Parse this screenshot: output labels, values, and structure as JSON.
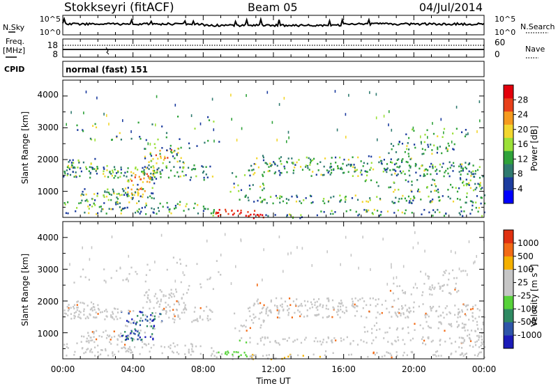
{
  "header": {
    "title": "Stokkseyri (fitACF)",
    "beam": "Beam 05",
    "date": "04/Jul/2014"
  },
  "top_panels": {
    "nsky_label": "N.Sky",
    "nsky_ticks": [
      "10^5",
      "10^0"
    ],
    "nsearch_label": "N.Search",
    "nsearch_ticks": [
      "10^5",
      "10^0"
    ],
    "freq_label_1": "Freq.",
    "freq_label_2": "[MHz]",
    "freq_ticks": [
      "18",
      "8"
    ],
    "nave_label": "Nave",
    "nave_ticks": [
      "60",
      "0"
    ],
    "cpid_label": "CPID",
    "cpid_text": "normal (fast) 151"
  },
  "time_axis": {
    "label": "Time UT",
    "ticks": [
      "00:00",
      "04:00",
      "08:00",
      "12:00",
      "16:00",
      "20:00",
      "00:00"
    ]
  },
  "chart_data": [
    {
      "type": "heatmap",
      "name": "power",
      "ylabel": "Slant Range [km]",
      "ylim": [
        180,
        4500
      ],
      "yticks": [
        "4000",
        "3000",
        "2000",
        "1000"
      ],
      "xlim_hours": [
        0,
        24
      ],
      "colorbar": {
        "label": "Power [dB]",
        "levels": [
          "28",
          "24",
          "20",
          "16",
          "12",
          "8",
          "4"
        ],
        "colors": [
          "#0000ff",
          "#1c3c9e",
          "#2f7a6f",
          "#2fa23a",
          "#9be038",
          "#f2d62e",
          "#f59a1e",
          "#e8401a",
          "#e3000b"
        ]
      }
    },
    {
      "type": "heatmap",
      "name": "velocity",
      "ylabel": "Slant Range [km]",
      "ylim": [
        180,
        4500
      ],
      "yticks": [
        "4000",
        "3000",
        "2000",
        "1000"
      ],
      "xlim_hours": [
        0,
        24
      ],
      "colorbar": {
        "label": "Velocity [m s",
        "label_sup": "-1",
        "levels": [
          "1000",
          "500",
          "100",
          "25",
          "-25",
          "-100",
          "-500",
          "-1000"
        ],
        "colors": [
          "#1b1bb8",
          "#2e55a8",
          "#2f8a62",
          "#57d23a",
          "#c6c6c6",
          "#c6c6c6",
          "#f4b000",
          "#f26b16",
          "#e03010"
        ]
      }
    }
  ]
}
